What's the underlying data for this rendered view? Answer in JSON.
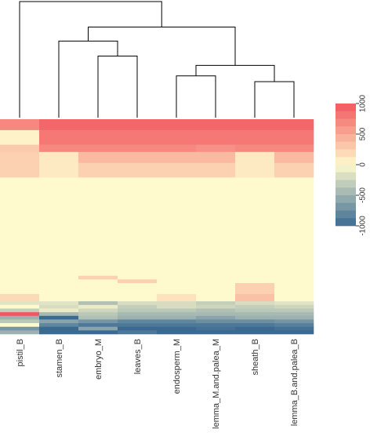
{
  "chart_data": {
    "type": "heatmap",
    "columns": [
      "pistil_B",
      "stamen_B",
      "embryo_M",
      "leaves_B",
      "endosperm_M",
      "lemma_M.and.palea_M",
      "sheath_B",
      "lemma_B.and.palea_B"
    ],
    "dendrogram": {
      "method": "hierarchical clustering of columns",
      "merges": [
        {
          "id": "m1",
          "left": "endosperm_M",
          "right": "lemma_M.and.palea_M",
          "height": 0.36
        },
        {
          "id": "m2",
          "left": "sheath_B",
          "right": "lemma_B.and.palea_B",
          "height": 0.31
        },
        {
          "id": "m3",
          "left": "m1",
          "right": "m2",
          "height": 0.45
        },
        {
          "id": "m4",
          "left": "embryo_M",
          "right": "leaves_B",
          "height": 0.53
        },
        {
          "id": "m5",
          "left": "stamen_B",
          "right": "m4",
          "height": 0.66
        },
        {
          "id": "m6",
          "left": "m5",
          "right": "m3",
          "height": 0.78
        },
        {
          "id": "m7",
          "left": "pistil_B",
          "right": "m6",
          "height": 1.0
        }
      ]
    },
    "color_scale": {
      "min": -1000,
      "max": 1000,
      "ticks": [
        1000,
        500,
        0,
        -500,
        -1000
      ],
      "low_color": "#3a6a92",
      "mid_color": "#fffacd",
      "high_color": "#f2575f"
    },
    "row_bands": [
      {
        "weight": 3,
        "values": [
          700,
          900,
          900,
          900,
          900,
          900,
          900,
          900
        ]
      },
      {
        "weight": 4,
        "values": [
          50,
          800,
          800,
          800,
          800,
          800,
          800,
          800
        ]
      },
      {
        "weight": 2,
        "values": [
          300,
          700,
          700,
          700,
          700,
          650,
          700,
          700
        ]
      },
      {
        "weight": 3,
        "values": [
          250,
          100,
          400,
          400,
          400,
          400,
          100,
          400
        ]
      },
      {
        "weight": 4,
        "values": [
          250,
          100,
          250,
          250,
          250,
          250,
          100,
          250
        ]
      },
      {
        "weight": 27,
        "values": [
          0,
          0,
          0,
          0,
          0,
          0,
          0,
          0
        ]
      },
      {
        "weight": 1,
        "values": [
          0,
          0,
          250,
          0,
          0,
          0,
          0,
          0
        ]
      },
      {
        "weight": 1,
        "values": [
          0,
          0,
          0,
          250,
          0,
          0,
          0,
          0
        ]
      },
      {
        "weight": 3,
        "values": [
          0,
          0,
          0,
          0,
          0,
          0,
          250,
          0
        ]
      },
      {
        "weight": 2,
        "values": [
          200,
          0,
          0,
          0,
          150,
          0,
          350,
          0
        ]
      },
      {
        "weight": 1,
        "values": [
          -150,
          -150,
          -400,
          -200,
          -200,
          -300,
          -200,
          -150
        ]
      },
      {
        "weight": 1,
        "values": [
          0,
          -200,
          -100,
          -300,
          -200,
          -250,
          -300,
          -250
        ]
      },
      {
        "weight": 1,
        "values": [
          -300,
          -100,
          -250,
          -350,
          -350,
          -400,
          -350,
          -350
        ]
      },
      {
        "weight": 1,
        "values": [
          1000,
          -450,
          -350,
          -450,
          -450,
          -450,
          -450,
          -450
        ]
      },
      {
        "weight": 1,
        "values": [
          -500,
          -1000,
          -400,
          -500,
          -500,
          -600,
          -500,
          -500
        ]
      },
      {
        "weight": 1,
        "values": [
          -350,
          -600,
          -700,
          -800,
          -800,
          -750,
          -750,
          -700
        ]
      },
      {
        "weight": 1,
        "values": [
          0,
          -800,
          -900,
          -900,
          -900,
          -900,
          -900,
          -850
        ]
      },
      {
        "weight": 1,
        "values": [
          -700,
          -1000,
          -600,
          -1000,
          -1000,
          -950,
          -1000,
          -950
        ]
      },
      {
        "weight": 1,
        "values": [
          -500,
          -1000,
          -1000,
          -900,
          -1000,
          -1000,
          -1000,
          -1000
        ]
      }
    ]
  }
}
